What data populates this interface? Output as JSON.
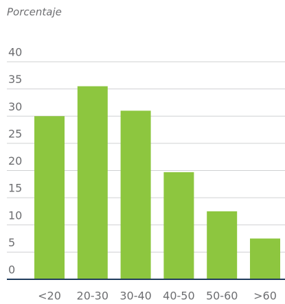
{
  "chart_data": {
    "type": "bar",
    "ylabel": "Porcentaje",
    "categories": [
      "<20",
      "20-30",
      "30-40",
      "40-50",
      "50-60",
      ">60"
    ],
    "values": [
      30,
      35.5,
      31,
      19.7,
      12.5,
      7.5
    ],
    "color": "#8dc63f",
    "ylim": [
      0,
      40
    ],
    "yticks": [
      0,
      5,
      10,
      15,
      20,
      25,
      30,
      35,
      40
    ],
    "grid": true
  }
}
